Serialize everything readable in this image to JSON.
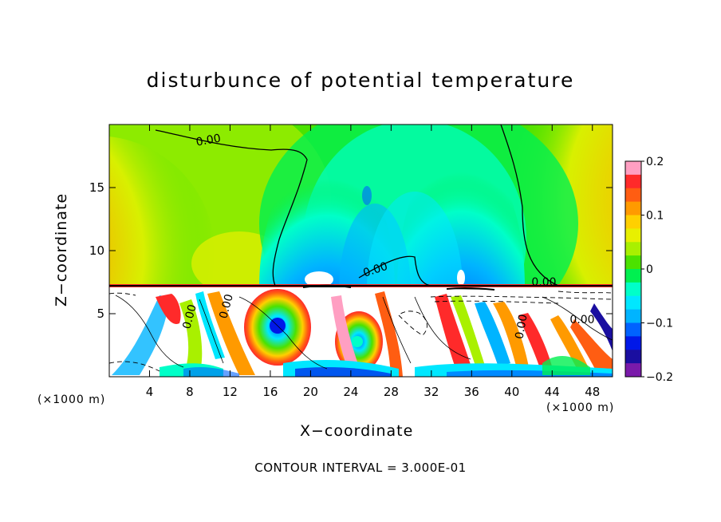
{
  "chart_data": {
    "type": "heatmap",
    "title": "disturbunce of potential temperature",
    "xlabel": "X−coordinate",
    "ylabel": "Z−coordinate",
    "x_unit": "(×1000 m)",
    "y_unit": "(×1000 m)",
    "x_ticks": [
      4,
      8,
      12,
      16,
      20,
      24,
      28,
      32,
      36,
      40,
      44,
      48
    ],
    "y_ticks": [
      5,
      10,
      15
    ],
    "xlim": [
      0,
      50
    ],
    "ylim": [
      0,
      20
    ],
    "colorbar": {
      "ticks": [
        0.2,
        0.1,
        0,
        -0.1,
        -0.2
      ],
      "tick_labels": [
        "0.2",
        "0.1",
        "0",
        "−0.1",
        "−0.2"
      ],
      "range": [
        -0.2,
        0.2
      ],
      "colors": [
        "#ff9fc2",
        "#ff2a2a",
        "#ff5d12",
        "#ff9a00",
        "#ffd000",
        "#e8f000",
        "#a9f000",
        "#4be200",
        "#00f050",
        "#00ffc8",
        "#00e7ff",
        "#00b4ff",
        "#0062ff",
        "#0018e8",
        "#1a0ea0",
        "#7a1aaa"
      ]
    },
    "contour_labels": [
      "0.00",
      "0.00",
      "0.00",
      "0.00",
      "0.00",
      "0.00",
      "0.00"
    ],
    "contour_interval_note": "CONTOUR INTERVAL = 3.000E-01"
  }
}
